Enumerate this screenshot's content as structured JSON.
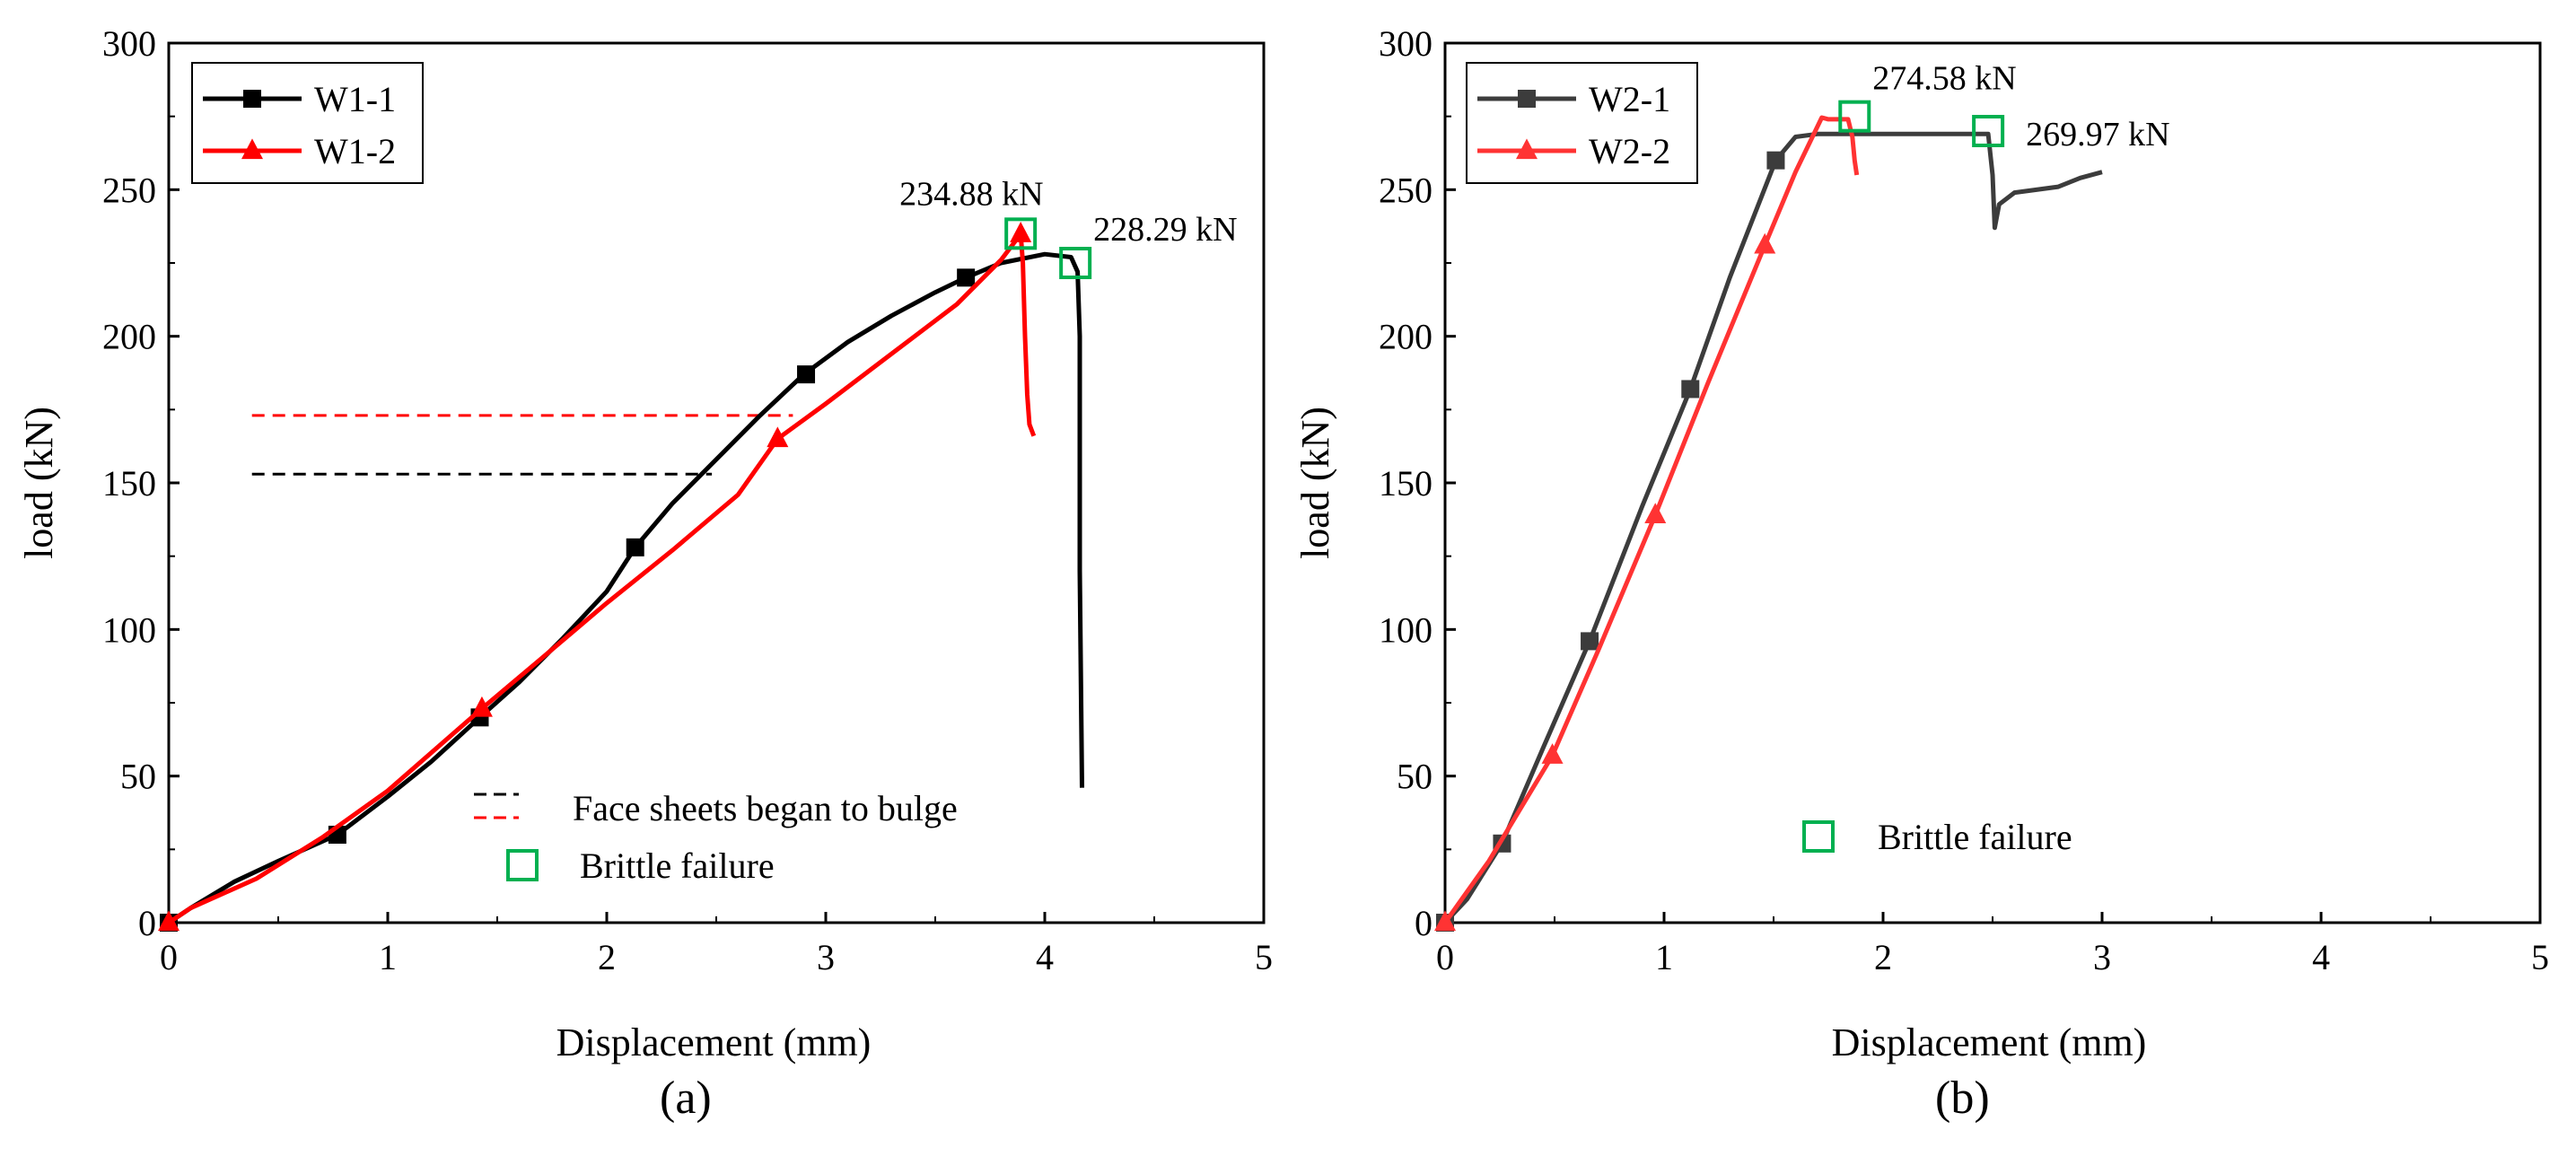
{
  "chart_data": [
    {
      "type": "line",
      "panel_label": "(a)",
      "xlabel": "Displacement (mm)",
      "ylabel": "load (kN)",
      "xlim": [
        0,
        5
      ],
      "ylim": [
        0,
        300
      ],
      "xticks": [
        0,
        1,
        2,
        3,
        4,
        5
      ],
      "yticks": [
        0,
        50,
        100,
        150,
        200,
        250,
        300
      ],
      "legend_position": "top-left",
      "series": [
        {
          "name": "W1-1",
          "color": "#000000",
          "marker": "square",
          "x": [
            0,
            0.1,
            0.3,
            0.5,
            0.77,
            1.0,
            1.2,
            1.42,
            1.6,
            1.8,
            2.0,
            2.13,
            2.3,
            2.5,
            2.7,
            2.9,
            3.1,
            3.3,
            3.5,
            3.64,
            3.8,
            4.0,
            4.12,
            4.15,
            4.16,
            4.16,
            4.17
          ],
          "y": [
            0,
            5,
            14,
            21,
            30,
            43,
            55,
            70,
            82,
            97,
            113,
            128,
            143,
            158,
            173,
            187,
            198,
            207,
            215,
            220,
            225,
            228,
            227,
            222,
            200,
            120,
            46
          ],
          "marker_x": [
            0,
            0.77,
            1.42,
            2.13,
            2.91,
            3.64
          ],
          "marker_y": [
            0,
            30,
            70,
            128,
            187,
            220
          ]
        },
        {
          "name": "W1-2",
          "color": "#ff0000",
          "marker": "triangle",
          "x": [
            0,
            0.1,
            0.4,
            0.7,
            1.0,
            1.43,
            1.7,
            2.0,
            2.3,
            2.6,
            2.78,
            3.0,
            3.3,
            3.6,
            3.8,
            3.89,
            3.9,
            3.91,
            3.92,
            3.93,
            3.95
          ],
          "y": [
            0,
            5,
            15,
            29,
            45,
            73,
            90,
            109,
            127,
            146,
            165,
            177,
            194,
            211,
            226,
            234.88,
            225,
            200,
            180,
            170,
            166
          ],
          "marker_x": [
            0,
            1.43,
            2.78,
            3.89
          ],
          "marker_y": [
            0,
            73,
            165,
            234.88
          ]
        }
      ],
      "reference_lines": [
        {
          "name": "W1-1 bulge",
          "color": "#000000",
          "y": 153,
          "x_start": 0.38,
          "x_end": 2.48
        },
        {
          "name": "W1-2 bulge",
          "color": "#ff0000",
          "y": 173,
          "x_start": 0.38,
          "x_end": 2.85
        }
      ],
      "failure_points": [
        {
          "x": 3.89,
          "y": 235,
          "label": "234.88 kN"
        },
        {
          "x": 4.14,
          "y": 225,
          "label": "228.29 kN"
        }
      ],
      "annotations": {
        "bulge_label": "Face sheets began to bulge",
        "failure_label": "Brittle failure"
      }
    },
    {
      "type": "line",
      "panel_label": "(b)",
      "xlabel": "Displacement (mm)",
      "ylabel": "load (kN)",
      "xlim": [
        0,
        5
      ],
      "ylim": [
        0,
        300
      ],
      "xticks": [
        0,
        1,
        2,
        3,
        4,
        5
      ],
      "yticks": [
        0,
        50,
        100,
        150,
        200,
        250,
        300
      ],
      "legend_position": "top-left",
      "series": [
        {
          "name": "W2-1",
          "color": "#3c3c3c",
          "marker": "square",
          "x": [
            0,
            0.1,
            0.26,
            0.45,
            0.66,
            0.9,
            1.12,
            1.3,
            1.51,
            1.6,
            1.7,
            2.0,
            2.3,
            2.48,
            2.5,
            2.51,
            2.53,
            2.6,
            2.8,
            2.9,
            3.0
          ],
          "y": [
            0,
            8,
            27,
            60,
            96,
            142,
            182,
            220,
            260,
            268,
            269,
            269,
            269,
            269,
            255,
            237,
            245,
            249,
            251,
            254,
            256
          ],
          "marker_x": [
            0,
            0.26,
            0.66,
            1.12,
            1.51
          ],
          "marker_y": [
            0,
            27,
            96,
            182,
            260
          ]
        },
        {
          "name": "W2-2",
          "color": "#ff3333",
          "marker": "triangle",
          "x": [
            0,
            0.2,
            0.49,
            0.7,
            0.96,
            1.2,
            1.46,
            1.6,
            1.72,
            1.75,
            1.8,
            1.84,
            1.86,
            1.87,
            1.88
          ],
          "y": [
            0,
            21,
            57,
            93,
            139,
            184,
            231,
            256,
            274.58,
            274,
            274,
            274,
            268,
            260,
            255
          ],
          "marker_x": [
            0,
            0.49,
            0.96,
            1.46
          ],
          "marker_y": [
            0,
            57,
            139,
            231
          ]
        }
      ],
      "failure_points": [
        {
          "x": 1.87,
          "y": 275,
          "label": "274.58 kN"
        },
        {
          "x": 2.48,
          "y": 270,
          "label": "269.97 kN"
        }
      ],
      "annotations": {
        "failure_label": "Brittle failure"
      }
    }
  ]
}
